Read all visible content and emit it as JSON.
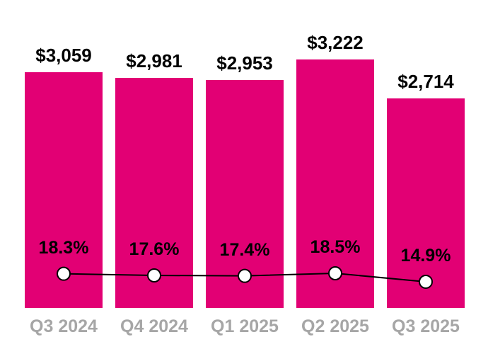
{
  "chart_data": {
    "type": "bar",
    "categories": [
      "Q3 2024",
      "Q4 2024",
      "Q1 2025",
      "Q2 2025",
      "Q3 2025"
    ],
    "series": [
      {
        "type": "bar",
        "values": [
          3059,
          2981,
          2953,
          3222,
          2714
        ],
        "labels": [
          "$3,059",
          "$2,981",
          "$2,953",
          "$3,222",
          "$2,714"
        ],
        "color": "#E20074"
      },
      {
        "type": "line",
        "values": [
          18.3,
          17.6,
          17.4,
          18.5,
          14.9
        ],
        "labels": [
          "18.3%",
          "17.6%",
          "17.4%",
          "18.5%",
          "14.9%"
        ],
        "color": "#000000",
        "marker_fill": "#FFFFFF",
        "marker_stroke": "#000000"
      }
    ],
    "title": "",
    "xlabel": "",
    "ylabel": "",
    "grid": false,
    "legend": false,
    "axes_visible": false,
    "category_label_color": "#A6A6A6",
    "background": "#FFFFFF"
  }
}
